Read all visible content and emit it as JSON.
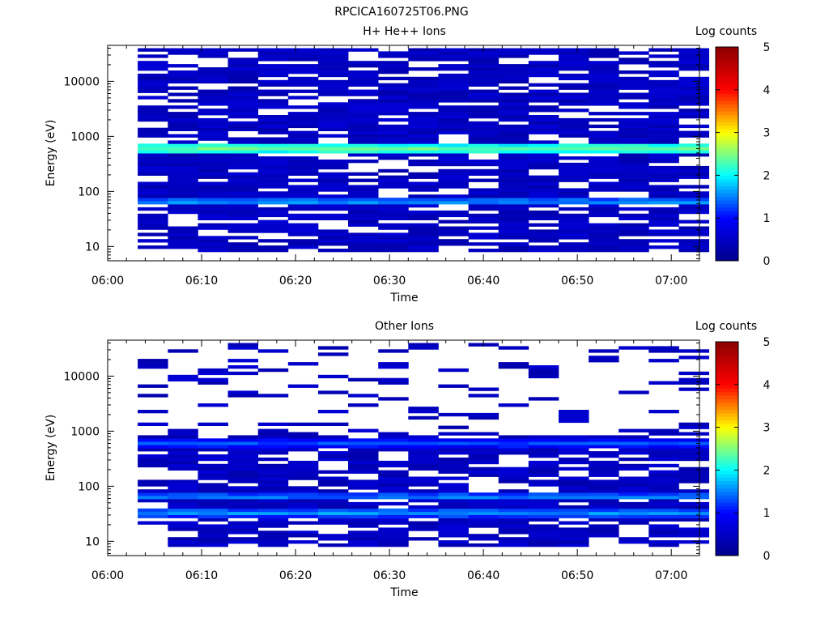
{
  "figure_title": "RPCICA160725T06.PNG",
  "colors": {
    "colormap": [
      "#00008b",
      "#0000ff",
      "#00ffff",
      "#ffff00",
      "#ff0000",
      "#8b0000"
    ]
  },
  "chart_data": [
    {
      "type": "heatmap",
      "title": "H+ He++ Ions",
      "xlabel": "Time",
      "ylabel": "Energy (eV)",
      "x_ticks": [
        "06:00",
        "06:10",
        "06:20",
        "06:30",
        "06:40",
        "06:50",
        "07:00"
      ],
      "xlim_minutes": [
        0,
        63
      ],
      "y_scale": "log",
      "y_ticks": [
        "10",
        "100",
        "1000",
        "10000"
      ],
      "ylim": [
        5.5,
        45000
      ],
      "colorbar": {
        "label": "Log counts",
        "ticks": [
          "0",
          "1",
          "2",
          "3",
          "4",
          "5"
        ],
        "range": [
          0,
          5
        ]
      },
      "time_bins_minutes": [
        3.2,
        6.4,
        9.6,
        12.8,
        16.0,
        19.2,
        22.4,
        25.6,
        28.8,
        32.0,
        35.2,
        38.4,
        41.6,
        44.8,
        48.0,
        51.2,
        54.4,
        57.6,
        60.8
      ],
      "energy_range_ev": [
        8,
        40000
      ],
      "dominant_bands": [
        {
          "energy_ev": 600,
          "log_counts": 2.4
        },
        {
          "energy_ev": 65,
          "log_counts": 1.6
        }
      ],
      "background_log_counts": 0.3
    },
    {
      "type": "heatmap",
      "title": "Other Ions",
      "xlabel": "Time",
      "ylabel": "Energy (eV)",
      "x_ticks": [
        "06:00",
        "06:10",
        "06:20",
        "06:30",
        "06:40",
        "06:50",
        "07:00"
      ],
      "xlim_minutes": [
        0,
        63
      ],
      "y_scale": "log",
      "y_ticks": [
        "10",
        "100",
        "1000",
        "10000"
      ],
      "ylim": [
        5.5,
        45000
      ],
      "colorbar": {
        "label": "Log counts",
        "ticks": [
          "0",
          "1",
          "2",
          "3",
          "4",
          "5"
        ],
        "range": [
          0,
          5
        ]
      },
      "time_bins_minutes": [
        3.2,
        6.4,
        9.6,
        12.8,
        16.0,
        19.2,
        22.4,
        25.6,
        28.8,
        32.0,
        35.2,
        38.4,
        41.6,
        44.8,
        48.0,
        51.2,
        54.4,
        57.6,
        60.8
      ],
      "energy_range_ev": [
        8,
        40000
      ],
      "dominant_bands": [
        {
          "energy_ev": 33,
          "log_counts": 1.6
        },
        {
          "energy_ev": 65,
          "log_counts": 1.5
        },
        {
          "energy_ev": 600,
          "log_counts": 1.3
        }
      ],
      "background_log_counts": 0.3
    }
  ]
}
